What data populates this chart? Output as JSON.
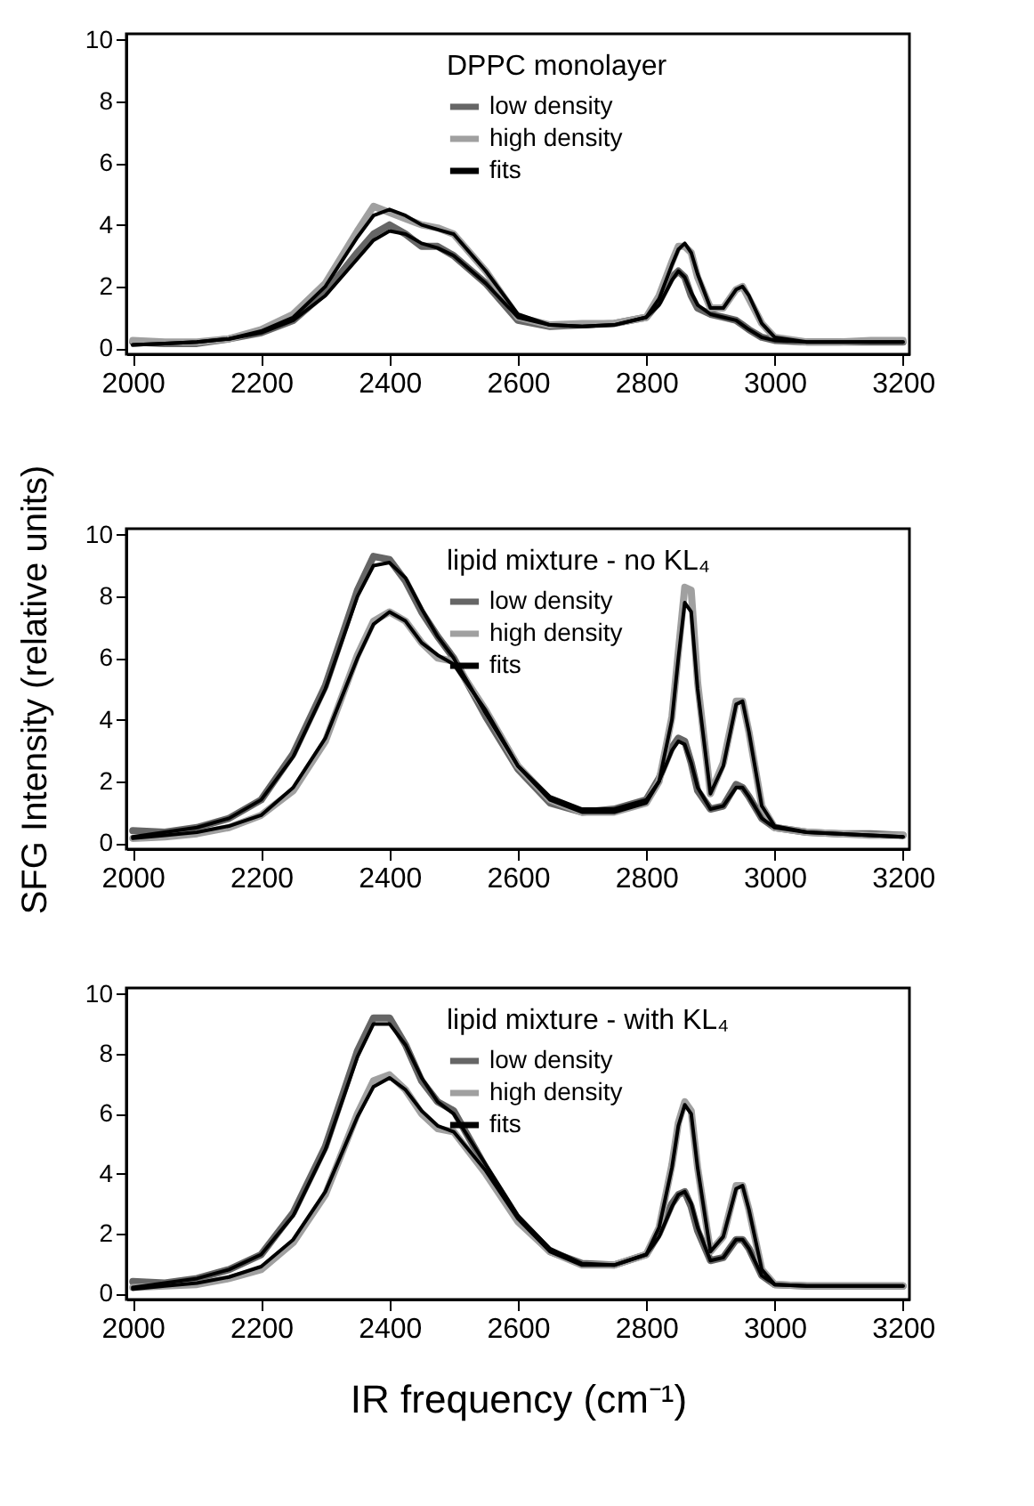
{
  "chart_data": [
    {
      "type": "line",
      "legend_title": "DPPC monolayer",
      "legend": "top right",
      "grid": false,
      "xlim": [
        1990,
        3210
      ],
      "ylim": [
        -0.2,
        10.2
      ],
      "xticks": [
        2000,
        2200,
        2400,
        2600,
        2800,
        3000,
        3200
      ],
      "yticks": [
        0,
        2,
        4,
        6,
        8,
        10
      ],
      "x": [
        2000,
        2050,
        2100,
        2150,
        2200,
        2250,
        2300,
        2350,
        2375,
        2400,
        2425,
        2450,
        2475,
        2500,
        2550,
        2600,
        2650,
        2700,
        2750,
        2800,
        2820,
        2840,
        2850,
        2860,
        2870,
        2880,
        2900,
        2920,
        2940,
        2950,
        2960,
        2980,
        3000,
        3050,
        3100,
        3150,
        3200
      ],
      "series": [
        {
          "name": "low density",
          "color": "#666666",
          "values": [
            0.2,
            0.15,
            0.15,
            0.3,
            0.5,
            0.9,
            1.8,
            3.1,
            3.7,
            4.0,
            3.7,
            3.3,
            3.3,
            3.0,
            2.1,
            0.9,
            0.7,
            0.75,
            0.8,
            1.0,
            1.5,
            2.3,
            2.5,
            2.3,
            1.7,
            1.3,
            1.1,
            1.0,
            0.9,
            0.75,
            0.6,
            0.35,
            0.25,
            0.2,
            0.2,
            0.2,
            0.2
          ]
        },
        {
          "name": "high density",
          "color": "#a0a0a0",
          "values": [
            0.25,
            0.2,
            0.2,
            0.3,
            0.6,
            1.1,
            2.1,
            3.8,
            4.6,
            4.4,
            4.2,
            4.0,
            3.9,
            3.7,
            2.5,
            1.0,
            0.75,
            0.8,
            0.8,
            1.0,
            1.7,
            2.8,
            3.3,
            3.3,
            3.1,
            2.3,
            1.3,
            1.3,
            1.9,
            2.0,
            1.6,
            0.8,
            0.35,
            0.2,
            0.2,
            0.25,
            0.25
          ]
        },
        {
          "name": "fits",
          "color": "#000000",
          "values": [
            0.1,
            0.15,
            0.2,
            0.3,
            0.5,
            0.9,
            1.7,
            2.9,
            3.5,
            3.8,
            3.7,
            3.4,
            3.25,
            3.0,
            2.1,
            1.0,
            0.75,
            0.7,
            0.75,
            1.0,
            1.4,
            2.2,
            2.5,
            2.3,
            1.8,
            1.4,
            1.1,
            1.0,
            0.9,
            0.75,
            0.6,
            0.35,
            0.25,
            0.2,
            0.2,
            0.2,
            0.2
          ]
        },
        {
          "color": "#000000",
          "values": [
            0.1,
            0.15,
            0.2,
            0.3,
            0.55,
            1.0,
            2.0,
            3.6,
            4.3,
            4.5,
            4.3,
            4.0,
            3.85,
            3.7,
            2.5,
            1.1,
            0.75,
            0.7,
            0.75,
            1.0,
            1.6,
            2.7,
            3.2,
            3.4,
            3.1,
            2.4,
            1.3,
            1.3,
            1.9,
            2.0,
            1.7,
            0.8,
            0.35,
            0.2,
            0.2,
            0.2,
            0.2
          ]
        }
      ]
    },
    {
      "type": "line",
      "legend_title": "lipid mixture - no KL₄",
      "ylabel": "SFG Intensity (relative units)",
      "legend": "top right",
      "grid": false,
      "xlim": [
        1990,
        3210
      ],
      "ylim": [
        -0.2,
        10.2
      ],
      "xticks": [
        2000,
        2200,
        2400,
        2600,
        2800,
        3000,
        3200
      ],
      "yticks": [
        0,
        2,
        4,
        6,
        8,
        10
      ],
      "x": [
        2000,
        2050,
        2100,
        2150,
        2200,
        2250,
        2300,
        2350,
        2375,
        2400,
        2425,
        2450,
        2475,
        2500,
        2550,
        2600,
        2650,
        2700,
        2750,
        2800,
        2820,
        2840,
        2850,
        2860,
        2870,
        2880,
        2900,
        2920,
        2940,
        2950,
        2960,
        2980,
        3000,
        3050,
        3100,
        3150,
        3200
      ],
      "series": [
        {
          "name": "low density",
          "color": "#666666",
          "values": [
            0.4,
            0.35,
            0.5,
            0.8,
            1.4,
            2.9,
            5.1,
            8.2,
            9.3,
            9.2,
            8.5,
            7.5,
            6.7,
            6.0,
            4.1,
            2.4,
            1.3,
            1.0,
            1.1,
            1.4,
            2.1,
            3.1,
            3.4,
            3.3,
            2.6,
            1.7,
            1.1,
            1.2,
            1.9,
            1.8,
            1.5,
            0.8,
            0.5,
            0.35,
            0.3,
            0.3,
            0.25
          ]
        },
        {
          "name": "high density",
          "color": "#a0a0a0",
          "values": [
            0.15,
            0.2,
            0.3,
            0.5,
            0.9,
            1.7,
            3.3,
            6.1,
            7.2,
            7.5,
            7.2,
            6.5,
            6.0,
            5.9,
            4.3,
            2.5,
            1.4,
            1.0,
            1.0,
            1.3,
            2.0,
            4.1,
            6.2,
            8.3,
            8.2,
            5.2,
            1.6,
            2.6,
            4.6,
            4.6,
            3.6,
            1.2,
            0.5,
            0.35,
            0.3,
            0.25,
            0.25
          ]
        },
        {
          "name": "fits",
          "color": "#000000",
          "values": [
            0.2,
            0.35,
            0.5,
            0.8,
            1.4,
            2.8,
            5.0,
            8.0,
            9.0,
            9.1,
            8.6,
            7.6,
            6.7,
            6.0,
            4.2,
            2.5,
            1.5,
            1.1,
            1.1,
            1.4,
            2.0,
            3.0,
            3.3,
            3.2,
            2.6,
            1.8,
            1.1,
            1.2,
            1.8,
            1.8,
            1.5,
            0.8,
            0.5,
            0.35,
            0.3,
            0.25,
            0.2
          ]
        },
        {
          "color": "#000000",
          "values": [
            0.15,
            0.25,
            0.35,
            0.55,
            0.9,
            1.8,
            3.4,
            6.0,
            7.1,
            7.5,
            7.2,
            6.5,
            6.1,
            5.8,
            4.3,
            2.5,
            1.4,
            1.0,
            1.0,
            1.3,
            2.0,
            4.0,
            6.0,
            7.8,
            7.5,
            5.0,
            1.6,
            2.5,
            4.5,
            4.6,
            3.6,
            1.2,
            0.55,
            0.35,
            0.3,
            0.25,
            0.2
          ]
        }
      ]
    },
    {
      "type": "line",
      "legend_title": "lipid mixture - with KL₄",
      "xlabel": "IR frequency (cm⁻¹)",
      "legend": "top right",
      "grid": false,
      "xlim": [
        1990,
        3210
      ],
      "ylim": [
        -0.2,
        10.2
      ],
      "xticks": [
        2000,
        2200,
        2400,
        2600,
        2800,
        3000,
        3200
      ],
      "yticks": [
        0,
        2,
        4,
        6,
        8,
        10
      ],
      "x": [
        2000,
        2050,
        2100,
        2150,
        2200,
        2250,
        2300,
        2350,
        2375,
        2400,
        2425,
        2450,
        2475,
        2500,
        2550,
        2600,
        2650,
        2700,
        2750,
        2800,
        2820,
        2840,
        2850,
        2860,
        2870,
        2880,
        2900,
        2920,
        2940,
        2950,
        2960,
        2980,
        3000,
        3050,
        3100,
        3150,
        3200
      ],
      "series": [
        {
          "name": "low density",
          "color": "#666666",
          "values": [
            0.4,
            0.35,
            0.5,
            0.8,
            1.3,
            2.7,
            4.9,
            8.1,
            9.2,
            9.2,
            8.3,
            7.1,
            6.4,
            6.1,
            4.2,
            2.5,
            1.4,
            1.0,
            0.95,
            1.3,
            2.0,
            3.0,
            3.3,
            3.4,
            2.9,
            2.1,
            1.1,
            1.2,
            1.8,
            1.8,
            1.5,
            0.6,
            0.3,
            0.25,
            0.25,
            0.25,
            0.25
          ]
        },
        {
          "name": "high density",
          "color": "#a0a0a0",
          "values": [
            0.2,
            0.25,
            0.3,
            0.5,
            0.8,
            1.7,
            3.3,
            6.0,
            7.1,
            7.3,
            6.8,
            6.0,
            5.5,
            5.4,
            4.0,
            2.4,
            1.4,
            0.95,
            0.95,
            1.3,
            2.2,
            4.3,
            5.7,
            6.4,
            6.1,
            4.2,
            1.4,
            1.9,
            3.6,
            3.6,
            2.8,
            0.8,
            0.3,
            0.25,
            0.25,
            0.25,
            0.25
          ]
        },
        {
          "name": "fits",
          "color": "#000000",
          "values": [
            0.2,
            0.35,
            0.5,
            0.8,
            1.3,
            2.6,
            4.8,
            7.9,
            9.0,
            9.0,
            8.3,
            7.2,
            6.4,
            6.0,
            4.3,
            2.6,
            1.5,
            1.0,
            0.95,
            1.3,
            1.9,
            2.9,
            3.3,
            3.4,
            3.0,
            2.2,
            1.1,
            1.2,
            1.8,
            1.8,
            1.5,
            0.6,
            0.3,
            0.25,
            0.25,
            0.25,
            0.25
          ]
        },
        {
          "color": "#000000",
          "values": [
            0.15,
            0.25,
            0.35,
            0.55,
            0.9,
            1.8,
            3.4,
            5.9,
            6.9,
            7.2,
            6.8,
            6.1,
            5.6,
            5.4,
            4.1,
            2.5,
            1.4,
            0.95,
            0.95,
            1.3,
            2.2,
            4.2,
            5.6,
            6.3,
            6.0,
            4.2,
            1.4,
            1.9,
            3.5,
            3.6,
            2.8,
            0.8,
            0.3,
            0.25,
            0.25,
            0.25,
            0.25
          ]
        }
      ]
    }
  ]
}
